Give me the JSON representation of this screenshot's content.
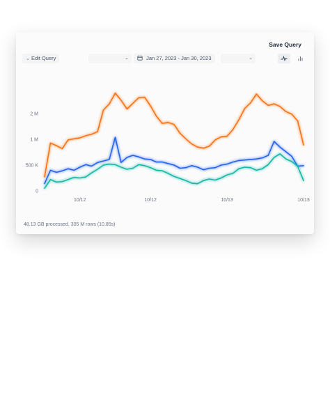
{
  "toolbar": {
    "edit_query_label": "Edit Query",
    "date_range": "Jan 27, 2023 - Jan 30, 2023",
    "save_label": "Save Query"
  },
  "footer": {
    "stats": "48.13 GB processed, 305 M rows (10.85s)"
  },
  "colors": {
    "orange": "#f97316",
    "blue": "#2563eb",
    "teal": "#14b8a6"
  },
  "chart_data": {
    "type": "line",
    "title": "",
    "xlabel": "",
    "ylabel": "",
    "ylim": [
      0,
      2300000
    ],
    "y_ticks": [
      {
        "value": 0,
        "label": "0"
      },
      {
        "value": 500000,
        "label": "500 K"
      },
      {
        "value": 1000000,
        "label": "1 M"
      },
      {
        "value": 1500000,
        "label": "2 M"
      }
    ],
    "x_tick_labels": [
      {
        "index": 6,
        "label": "10/12"
      },
      {
        "index": 18,
        "label": "10/12"
      },
      {
        "index": 31,
        "label": "10/13"
      },
      {
        "index": 44,
        "label": "10/13"
      }
    ],
    "series": [
      {
        "color": "#f97316",
        "values": [
          270000,
          930000,
          880000,
          820000,
          990000,
          1010000,
          1030000,
          1070000,
          1100000,
          1150000,
          1570000,
          1690000,
          1900000,
          1760000,
          1590000,
          1700000,
          1810000,
          1820000,
          1650000,
          1450000,
          1310000,
          1330000,
          1290000,
          1120000,
          1010000,
          910000,
          850000,
          830000,
          870000,
          990000,
          1050000,
          1060000,
          1190000,
          1380000,
          1600000,
          1710000,
          1880000,
          1750000,
          1660000,
          1690000,
          1640000,
          1540000,
          1490000,
          1360000,
          890000
        ]
      },
      {
        "color": "#2563eb",
        "values": [
          140000,
          400000,
          360000,
          390000,
          430000,
          400000,
          460000,
          510000,
          480000,
          550000,
          580000,
          610000,
          1040000,
          550000,
          650000,
          690000,
          660000,
          620000,
          610000,
          560000,
          560000,
          530000,
          500000,
          440000,
          450000,
          490000,
          460000,
          410000,
          440000,
          450000,
          500000,
          520000,
          560000,
          590000,
          600000,
          610000,
          620000,
          640000,
          690000,
          960000,
          850000,
          760000,
          670000,
          480000,
          490000
        ]
      },
      {
        "color": "#14b8a6",
        "values": [
          50000,
          220000,
          170000,
          180000,
          220000,
          260000,
          250000,
          270000,
          350000,
          420000,
          500000,
          520000,
          510000,
          460000,
          420000,
          440000,
          510000,
          490000,
          450000,
          400000,
          390000,
          340000,
          280000,
          240000,
          200000,
          150000,
          140000,
          200000,
          230000,
          210000,
          250000,
          310000,
          340000,
          430000,
          460000,
          450000,
          400000,
          430000,
          510000,
          650000,
          720000,
          620000,
          570000,
          480000,
          200000
        ]
      }
    ]
  }
}
